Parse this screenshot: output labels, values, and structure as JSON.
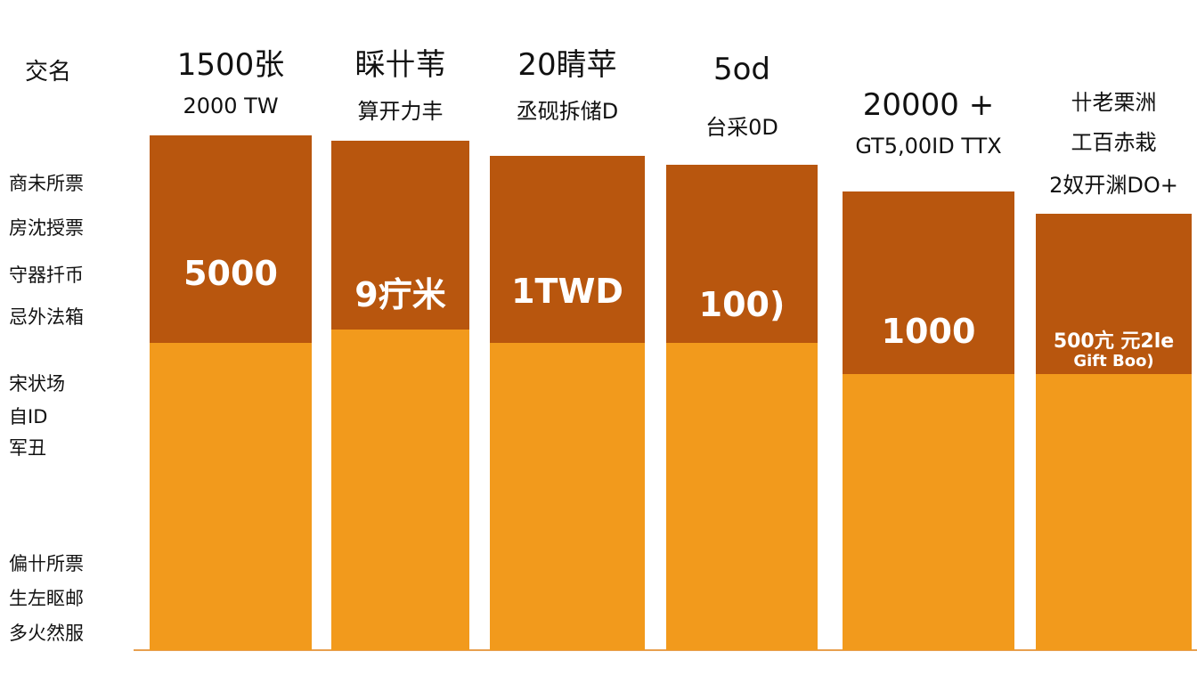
{
  "left_labels": [
    "交名",
    "商未所票",
    "房沈授票",
    "守器扦币",
    "忌外法箱",
    "宋状场",
    "自ID",
    "军丑",
    "偏卄所票",
    "生左眍邮",
    "多火然服"
  ],
  "columns": [
    {
      "headers": [
        "1500张",
        "2000 TW"
      ],
      "inner": [
        "5000"
      ]
    },
    {
      "headers": [
        "睬卄苇",
        "算开力丰"
      ],
      "inner": [
        "9疔米"
      ]
    },
    {
      "headers": [
        "20睛苹",
        "丞砚拆储D"
      ],
      "inner": [
        "1TWD"
      ]
    },
    {
      "headers": [
        "5od",
        "台采0D"
      ],
      "inner": [
        "100)"
      ]
    },
    {
      "headers": [
        "20000 +",
        "GT5,00ID TTX"
      ],
      "inner": [
        "1000"
      ]
    },
    {
      "headers": [
        "卄老栗洲",
        "工百赤栽",
        "2奴开渊DO+"
      ],
      "inner": [
        "500亢 元2le",
        "Gift Boo)"
      ]
    }
  ]
}
